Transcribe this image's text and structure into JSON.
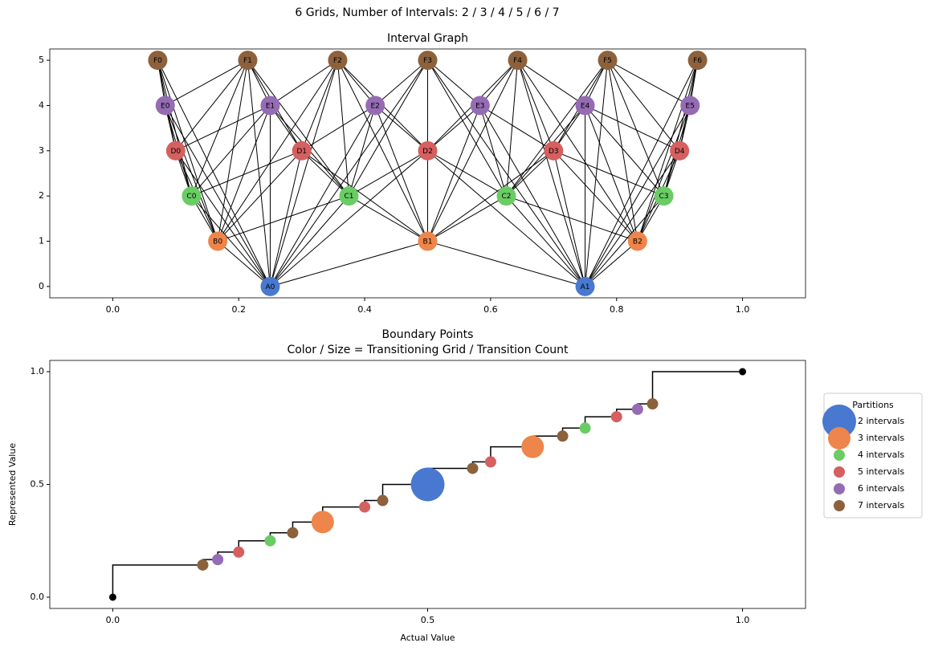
{
  "title": "6 Grids, Number of Intervals: 2 / 3 / 4 / 5 / 6 / 7",
  "chart_data": [
    {
      "type": "network",
      "title": "Interval Graph",
      "xlim": [
        -0.1,
        1.1
      ],
      "ylim": [
        -0.25,
        5.25
      ],
      "xticks": [
        {
          "value": 0,
          "label": "0.0"
        },
        0.2,
        0.4,
        0.6,
        0.8,
        {
          "value": 1,
          "label": "1.0"
        }
      ],
      "yticks": [
        0,
        1,
        2,
        3,
        4,
        5
      ],
      "groups": [
        {
          "color": "#4878d0",
          "nodes": [
            {
              "label": "A0",
              "x": 0.25,
              "y": 0
            },
            {
              "label": "A1",
              "x": 0.75,
              "y": 0
            }
          ]
        },
        {
          "color": "#ee854a",
          "nodes": [
            {
              "label": "B0",
              "x": 0.1667,
              "y": 1
            },
            {
              "label": "B1",
              "x": 0.5,
              "y": 1
            },
            {
              "label": "B2",
              "x": 0.8333,
              "y": 1
            }
          ]
        },
        {
          "color": "#6acc64",
          "nodes": [
            {
              "label": "C0",
              "x": 0.125,
              "y": 2
            },
            {
              "label": "C1",
              "x": 0.375,
              "y": 2
            },
            {
              "label": "C2",
              "x": 0.625,
              "y": 2
            },
            {
              "label": "C3",
              "x": 0.875,
              "y": 2
            }
          ]
        },
        {
          "color": "#d65f5f",
          "nodes": [
            {
              "label": "D0",
              "x": 0.1,
              "y": 3
            },
            {
              "label": "D1",
              "x": 0.3,
              "y": 3
            },
            {
              "label": "D2",
              "x": 0.5,
              "y": 3
            },
            {
              "label": "D3",
              "x": 0.7,
              "y": 3
            },
            {
              "label": "D4",
              "x": 0.9,
              "y": 3
            }
          ]
        },
        {
          "color": "#956cb4",
          "nodes": [
            {
              "label": "E0",
              "x": 0.0833,
              "y": 4
            },
            {
              "label": "E1",
              "x": 0.25,
              "y": 4
            },
            {
              "label": "E2",
              "x": 0.4167,
              "y": 4
            },
            {
              "label": "E3",
              "x": 0.5833,
              "y": 4
            },
            {
              "label": "E4",
              "x": 0.75,
              "y": 4
            },
            {
              "label": "E5",
              "x": 0.9167,
              "y": 4
            }
          ]
        },
        {
          "color": "#8c613c",
          "nodes": [
            {
              "label": "F0",
              "x": 0.0714,
              "y": 5
            },
            {
              "label": "F1",
              "x": 0.2143,
              "y": 5
            },
            {
              "label": "F2",
              "x": 0.3571,
              "y": 5
            },
            {
              "label": "F3",
              "x": 0.5,
              "y": 5
            },
            {
              "label": "F4",
              "x": 0.6429,
              "y": 5
            },
            {
              "label": "F5",
              "x": 0.7857,
              "y": 5
            },
            {
              "label": "F6",
              "x": 0.9286,
              "y": 5
            }
          ]
        }
      ]
    },
    {
      "type": "step-scatter",
      "title": [
        "Boundary Points",
        "Color / Size = Transitioning Grid / Transition Count"
      ],
      "xlabel": "Actual Value",
      "ylabel": "Represented Value",
      "xlim": [
        -0.1,
        1.1
      ],
      "ylim": [
        -0.05,
        1.05
      ],
      "xticks": [
        {
          "value": 0,
          "label": "0.0"
        },
        0.5,
        {
          "value": 1,
          "label": "1.0"
        }
      ],
      "yticks": [
        {
          "value": 0,
          "label": "0.0"
        },
        0.5,
        {
          "value": 1,
          "label": "1.0"
        }
      ],
      "legend_title": "Partitions",
      "legend": "right",
      "step": {
        "color": "#000000",
        "x": [
          0,
          0.1429,
          0.1667,
          0.2,
          0.25,
          0.2857,
          0.3333,
          0.4,
          0.4286,
          0.5,
          0.5714,
          0.6,
          0.6667,
          0.7143,
          0.75,
          0.8,
          0.8333,
          0.8571,
          1
        ],
        "values": [
          0,
          0.1429,
          0.1667,
          0.2,
          0.25,
          0.2857,
          0.3333,
          0.4,
          0.4286,
          0.5,
          0.5714,
          0.6,
          0.6667,
          0.7143,
          0.75,
          0.8,
          0.8333,
          0.8571,
          1
        ]
      },
      "endpoints": {
        "color": "#000000",
        "x": [
          0,
          1
        ],
        "values": [
          0,
          1
        ]
      },
      "series": [
        {
          "name": "2 intervals",
          "color": "#4878d0",
          "x": [
            0.5
          ],
          "values": [
            0.5
          ],
          "sizes": [
            3
          ]
        },
        {
          "name": "3 intervals",
          "color": "#ee854a",
          "x": [
            0.3333,
            0.6667
          ],
          "values": [
            0.3333,
            0.6667
          ],
          "sizes": [
            2,
            2
          ]
        },
        {
          "name": "4 intervals",
          "color": "#6acc64",
          "x": [
            0.25,
            0.75
          ],
          "values": [
            0.25,
            0.75
          ],
          "sizes": [
            1,
            1
          ]
        },
        {
          "name": "5 intervals",
          "color": "#d65f5f",
          "x": [
            0.2,
            0.4,
            0.6,
            0.8
          ],
          "values": [
            0.2,
            0.4,
            0.6,
            0.8
          ],
          "sizes": [
            1,
            1,
            1,
            1
          ]
        },
        {
          "name": "6 intervals",
          "color": "#956cb4",
          "x": [
            0.1667,
            0.8333
          ],
          "values": [
            0.1667,
            0.8333
          ],
          "sizes": [
            1,
            1
          ]
        },
        {
          "name": "7 intervals",
          "color": "#8c613c",
          "x": [
            0.1429,
            0.2857,
            0.4286,
            0.5714,
            0.7143,
            0.8571
          ],
          "values": [
            0.1429,
            0.2857,
            0.4286,
            0.5714,
            0.7143,
            0.8571
          ],
          "sizes": [
            1,
            1,
            1,
            1,
            1,
            1
          ]
        }
      ]
    }
  ]
}
